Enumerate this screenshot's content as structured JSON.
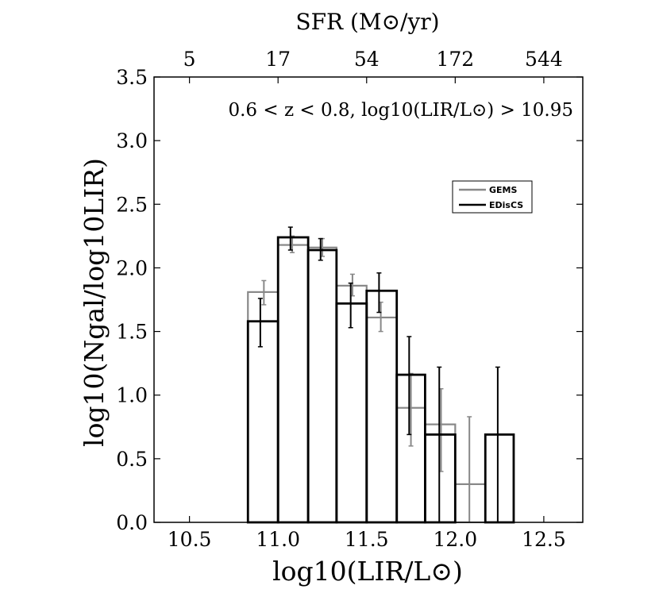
{
  "chart_data": {
    "type": "histogram",
    "xlabel": "log10(LIR/L⊙)",
    "ylabel": "log10(Ngal/log10LIR)",
    "top_xlabel": "SFR (M⊙/yr)",
    "annotation": "0.6 < z < 0.8, log10(LIR/L⊙) > 10.95",
    "xlim": [
      10.3,
      12.72
    ],
    "ylim": [
      0.0,
      3.5
    ],
    "xticks": [
      10.5,
      11.0,
      11.5,
      12.0,
      12.5
    ],
    "xtick_labels": [
      "10.5",
      "11.0",
      "11.5",
      "12.0",
      "12.5"
    ],
    "yticks": [
      0.0,
      0.5,
      1.0,
      1.5,
      2.0,
      2.5,
      3.0,
      3.5
    ],
    "ytick_labels": [
      "0.0",
      "0.5",
      "1.0",
      "1.5",
      "2.0",
      "2.5",
      "3.0",
      "3.5"
    ],
    "top_ticks": [
      {
        "x": 10.5,
        "label": "5"
      },
      {
        "x": 11.0,
        "label": "17"
      },
      {
        "x": 11.5,
        "label": "54"
      },
      {
        "x": 12.0,
        "label": "172"
      },
      {
        "x": 12.5,
        "label": "544"
      }
    ],
    "legend_position": "upper-right",
    "series": [
      {
        "name": "GEMS",
        "color": "#888888",
        "bin_edges": [
          10.83,
          11.0,
          11.17,
          11.33,
          11.5,
          11.67,
          11.83,
          12.0,
          12.17
        ],
        "values": [
          1.81,
          2.18,
          2.16,
          1.86,
          1.61,
          0.9,
          0.77,
          0.3
        ],
        "error_x": [
          10.92,
          11.08,
          11.25,
          11.42,
          11.58,
          11.75,
          11.92,
          12.08
        ],
        "error_low": [
          1.71,
          2.12,
          2.09,
          1.78,
          1.5,
          0.6,
          0.4,
          0.0
        ],
        "error_high": [
          1.9,
          2.25,
          2.23,
          1.95,
          1.73,
          1.17,
          1.05,
          0.83
        ]
      },
      {
        "name": "EDisCS",
        "color": "#000000",
        "bin_edges": [
          10.83,
          11.0,
          11.17,
          11.33,
          11.5,
          11.67,
          11.83,
          12.0,
          12.17,
          12.33
        ],
        "values": [
          1.58,
          2.24,
          2.14,
          1.72,
          1.82,
          1.16,
          0.69,
          0.0,
          0.69
        ],
        "error_x": [
          10.9,
          11.07,
          11.24,
          11.41,
          11.57,
          11.74,
          11.91,
          null,
          12.24
        ],
        "error_low": [
          1.38,
          2.14,
          2.06,
          1.53,
          1.65,
          0.69,
          0.0,
          null,
          0.0
        ],
        "error_high": [
          1.76,
          2.32,
          2.23,
          1.88,
          1.96,
          1.46,
          1.22,
          null,
          1.22
        ]
      }
    ]
  }
}
